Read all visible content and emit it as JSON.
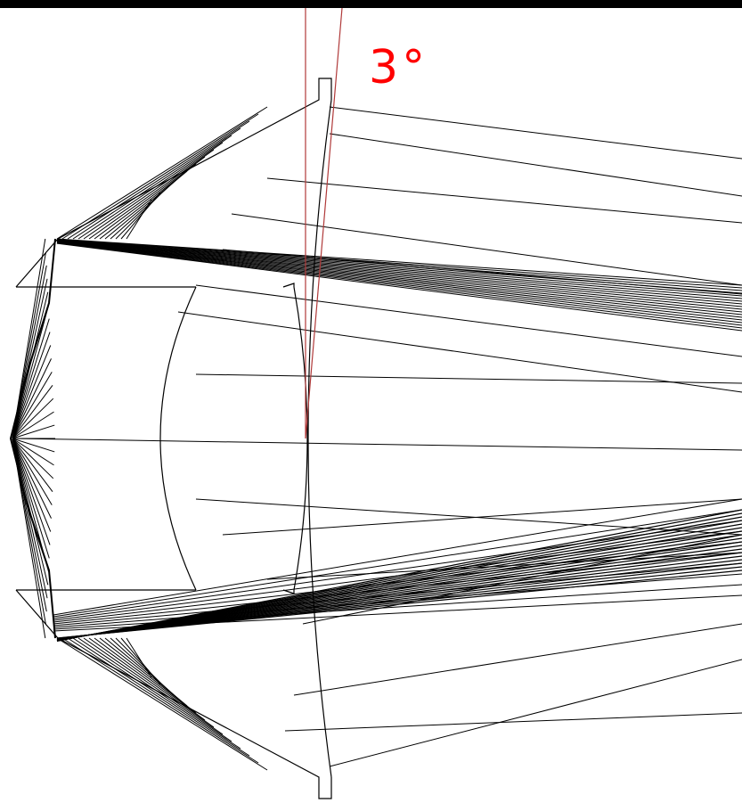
{
  "angle_label": "3°",
  "colors": {
    "background": "#ffffff",
    "frame": "#000000",
    "rays": "#000000",
    "lens": "#000000",
    "angle_lines": "#b03a3a",
    "angle_label": "#ff0000"
  }
}
